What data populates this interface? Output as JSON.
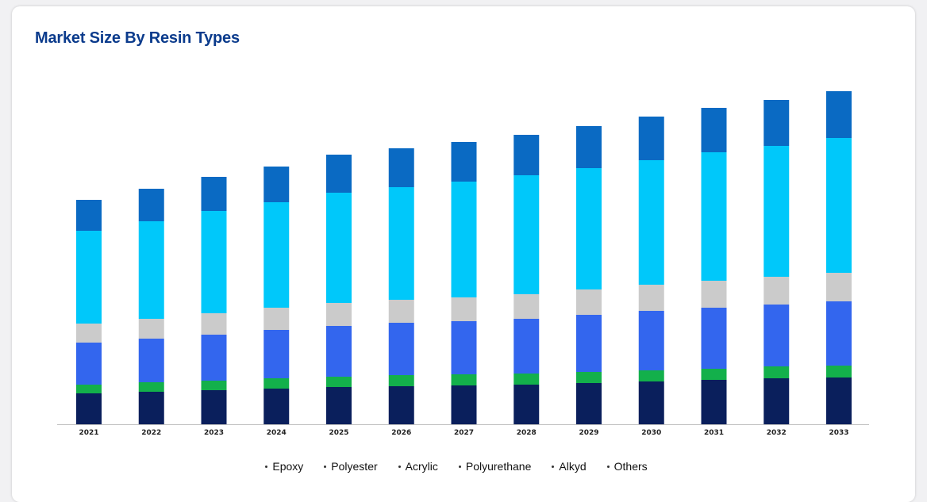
{
  "title": "Market Size By Resin Types",
  "chart_data": {
    "type": "bar",
    "stacked": true,
    "title": "Market Size By Resin Types",
    "xlabel": "",
    "ylabel": "",
    "categories": [
      "2021",
      "2022",
      "2023",
      "2024",
      "2025",
      "2026",
      "2027",
      "2028",
      "2029",
      "2030",
      "2031",
      "2032",
      "2033"
    ],
    "series": [
      {
        "name": "Epoxy",
        "color": "#0a1f5c",
        "values": [
          39,
          41,
          43,
          45,
          47,
          48,
          49,
          50,
          52,
          54,
          56,
          58,
          59
        ]
      },
      {
        "name": "Polyester",
        "color": "#13b04b",
        "values": [
          11,
          12,
          12,
          13,
          13,
          14,
          14,
          14,
          14,
          14,
          14,
          15,
          15
        ]
      },
      {
        "name": "Acrylic",
        "color": "#3366ee",
        "values": [
          53,
          55,
          58,
          61,
          64,
          66,
          67,
          69,
          72,
          75,
          77,
          78,
          81
        ]
      },
      {
        "name": "Polyurethane",
        "color": "#cbcbcb",
        "values": [
          24,
          25,
          27,
          28,
          29,
          29,
          30,
          31,
          32,
          33,
          34,
          35,
          36
        ]
      },
      {
        "name": "Alkyd",
        "color": "#00c8fa",
        "values": [
          117,
          123,
          129,
          133,
          139,
          142,
          146,
          150,
          153,
          157,
          162,
          165,
          170
        ]
      },
      {
        "name": "Others",
        "color": "#0a6ac3",
        "values": [
          39,
          41,
          43,
          45,
          48,
          49,
          50,
          51,
          53,
          55,
          56,
          58,
          59
        ]
      }
    ]
  },
  "legend": [
    "Epoxy",
    "Polyester",
    "Acrylic",
    "Polyurethane",
    "Alkyd",
    "Others"
  ]
}
